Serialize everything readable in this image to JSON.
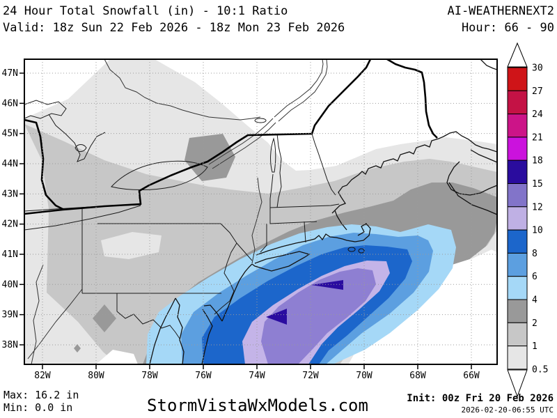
{
  "header": {
    "title": "24 Hour Total Snowfall (in) - 10:1 Ratio",
    "model": "AI-WEATHERNEXT2",
    "valid": "Valid: 18z Sun 22 Feb 2026 - 18z Mon 23 Feb 2026",
    "hour": "Hour: 66 - 90"
  },
  "footer": {
    "max": "Max: 16.2 in",
    "min": "Min: 0.0 in",
    "watermark": "StormVistaWxModels.com",
    "init": "Init: 00z Fri 20 Feb 2026",
    "init_utc": "2026-02-20-06:55 UTC"
  },
  "map": {
    "lat_labels": [
      "47N",
      "46N",
      "45N",
      "44N",
      "43N",
      "42N",
      "41N",
      "40N",
      "39N",
      "38N"
    ],
    "lon_labels": [
      "82W",
      "80W",
      "78W",
      "76W",
      "74W",
      "72W",
      "70W",
      "68W",
      "66W"
    ]
  },
  "colorbar": {
    "labels": [
      "30",
      "27",
      "24",
      "21",
      "18",
      "15",
      "12",
      "10",
      "8",
      "6",
      "4",
      "2",
      "1",
      "0.5"
    ],
    "colors": [
      "#cf1418",
      "#c41245",
      "#cc1488",
      "#cb12dd",
      "#2a0c9e",
      "#8274c9",
      "#bfb0e4",
      "#1c66cb",
      "#5c9fe0",
      "#a5d8f7",
      "#999999",
      "#c7c7c7",
      "#e6e6e6"
    ]
  },
  "shading": {
    "white": "#ffffff",
    "light_gray": "#e6e6e6",
    "medium_gray": "#c7c7c7",
    "dark_gray": "#999999",
    "light_blue": "#a5d8f7",
    "medium_blue": "#5c9fe0",
    "strong_blue": "#1c66cb",
    "lavender": "#c4b4e8",
    "purple": "#8e7fd2",
    "navy": "#2a0ca0"
  }
}
